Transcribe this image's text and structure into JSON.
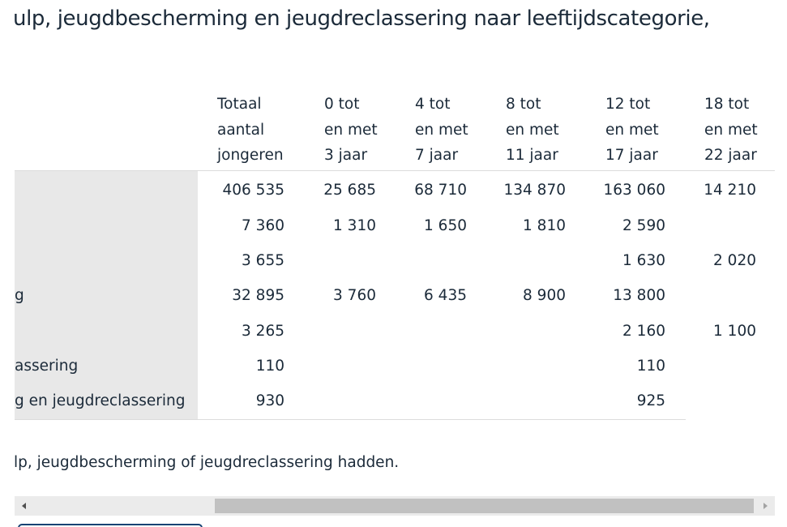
{
  "title": "ulp, jeugdbescherming en jeugdreclassering naar leeftijdscategorie,",
  "table": {
    "columns": [
      {
        "lines": [
          "Totaal",
          "aantal",
          "jongeren"
        ]
      },
      {
        "lines": [
          "0 tot",
          "en met",
          "3 jaar"
        ]
      },
      {
        "lines": [
          "4 tot",
          "en met",
          "7 jaar"
        ]
      },
      {
        "lines": [
          "8 tot",
          "en met",
          "11 jaar"
        ]
      },
      {
        "lines": [
          "12 tot",
          "en met",
          "17 jaar"
        ]
      },
      {
        "lines": [
          "18 tot",
          "en met",
          "22 jaar"
        ]
      }
    ],
    "rows": [
      {
        "label": "",
        "values": [
          "406 535",
          "25 685",
          "68 710",
          "134 870",
          "163 060",
          "14 210"
        ]
      },
      {
        "label": "",
        "values": [
          "7 360",
          "1 310",
          "1 650",
          "1 810",
          "2 590",
          ""
        ]
      },
      {
        "label": "",
        "values": [
          "3 655",
          "",
          "",
          "",
          "1 630",
          "2 020"
        ]
      },
      {
        "label": "g",
        "values": [
          "32 895",
          "3 760",
          "6 435",
          "8 900",
          "13 800",
          ""
        ]
      },
      {
        "label": "",
        "values": [
          "3 265",
          "",
          "",
          "",
          "2 160",
          "1 100"
        ]
      },
      {
        "label": "assering",
        "values": [
          "110",
          "",
          "",
          "",
          "110",
          ""
        ]
      },
      {
        "label": "g en jeugdreclassering",
        "values": [
          "930",
          "",
          "",
          "",
          "925",
          ""
        ]
      }
    ]
  },
  "footnote": "lp, jeugdbescherming of jeugdreclassering hadden.",
  "scrollbar": {
    "left_arrow_icon": "triangle-left-icon",
    "right_arrow_icon": "triangle-right-icon"
  }
}
